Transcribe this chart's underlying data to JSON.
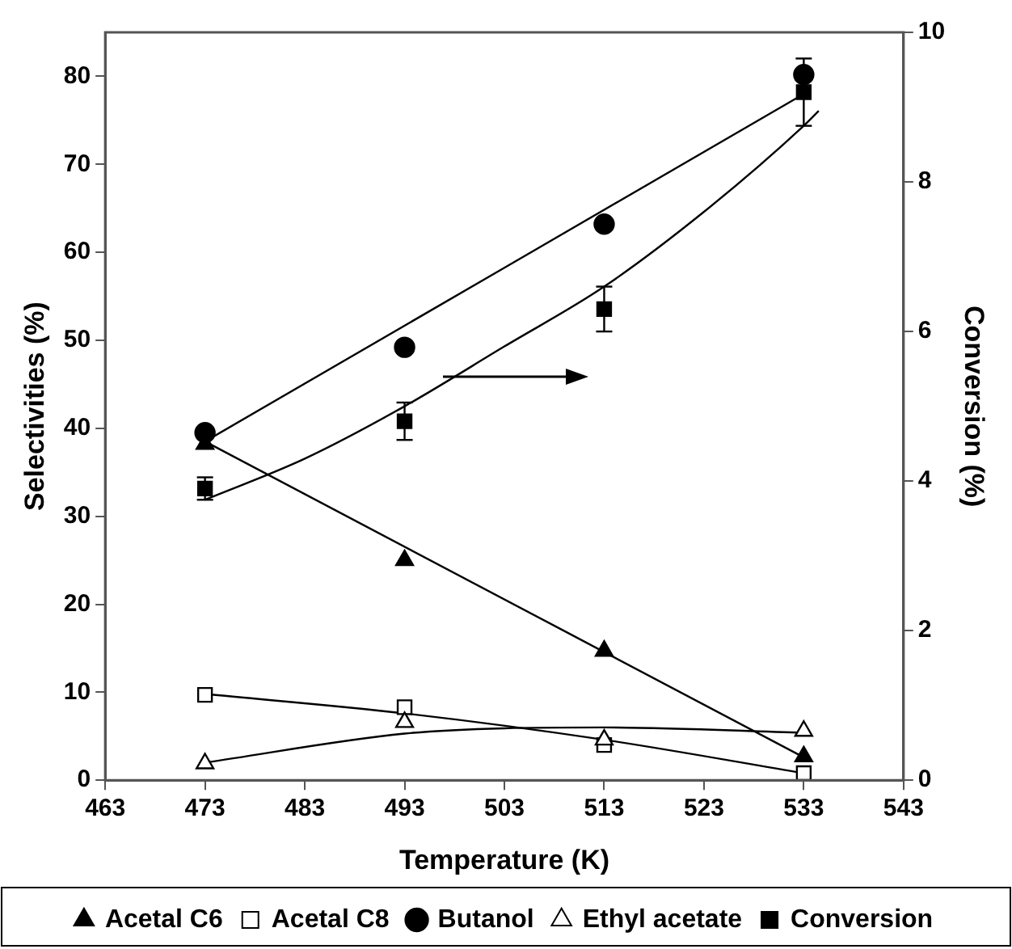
{
  "chart_data": {
    "type": "scatter",
    "xlabel": "Temperature (K)",
    "ylabel": "Selectivities (%)",
    "y2label": "Conversion (%)",
    "xlim": [
      463,
      543
    ],
    "xticks": [
      463,
      473,
      483,
      493,
      503,
      513,
      523,
      533,
      543
    ],
    "ylim": [
      0,
      85
    ],
    "yticks": [
      0,
      10,
      20,
      30,
      40,
      50,
      60,
      70,
      80
    ],
    "y2lim": [
      0,
      10
    ],
    "y2ticks": [
      0,
      2,
      4,
      6,
      8,
      10
    ],
    "grid": false,
    "legend": "bottom",
    "series": [
      {
        "name": "Acetal C6",
        "type": "scatter",
        "marker": "triangle",
        "color": "#000000",
        "x": [
          473,
          493,
          513,
          533
        ],
        "values": [
          38.2,
          25,
          14.7,
          2.7
        ]
      },
      {
        "name": "Acetal C8",
        "type": "scatter",
        "marker": "square",
        "color": "#ffffff",
        "x": [
          473,
          493,
          513,
          533
        ],
        "values": [
          9.7,
          8.3,
          4,
          0.8
        ]
      },
      {
        "name": "Butanol",
        "type": "scatter",
        "marker": "circle",
        "color": "#000000",
        "x": [
          473,
          493,
          513,
          533
        ],
        "values": [
          39.5,
          49.2,
          63.2,
          80.2
        ]
      },
      {
        "name": "Ethyl acetate",
        "type": "scatter",
        "marker": "triangle",
        "color": "#ffffff",
        "x": [
          473,
          493,
          513,
          533
        ],
        "values": [
          1.9,
          6.6,
          4.6,
          5.6
        ]
      },
      {
        "name": "Conversion",
        "type": "scatter",
        "marker": "square",
        "color": "#000000",
        "axis": "y2",
        "x": [
          473,
          493,
          513,
          533
        ],
        "values": [
          3.9,
          4.8,
          6.3,
          9.2
        ],
        "errors": [
          0.15,
          0.25,
          0.3,
          0.45
        ]
      },
      {
        "type": "line",
        "marker": "none",
        "color": "#000000",
        "x": [
          473,
          533
        ],
        "values": [
          38.5,
          2.6
        ]
      },
      {
        "type": "line",
        "marker": "none",
        "color": "#000000",
        "x": [
          473,
          493,
          513,
          533
        ],
        "values": [
          9.8,
          7.6,
          4.6,
          0.8
        ]
      },
      {
        "type": "line",
        "marker": "none",
        "color": "#000000",
        "x": [
          473,
          533
        ],
        "values": [
          38.5,
          78
        ]
      },
      {
        "type": "line",
        "marker": "none",
        "color": "#000000",
        "x": [
          473,
          493,
          503,
          513,
          533
        ],
        "values": [
          2,
          5.3,
          5.9,
          6,
          5.4
        ]
      },
      {
        "type": "line",
        "marker": "none",
        "color": "#000000",
        "axis": "y2",
        "x": [
          473,
          483,
          493,
          503,
          513,
          523,
          533,
          534.5
        ],
        "values": [
          3.75,
          4.3,
          5,
          5.8,
          6.6,
          7.6,
          8.75,
          8.95
        ]
      }
    ]
  }
}
